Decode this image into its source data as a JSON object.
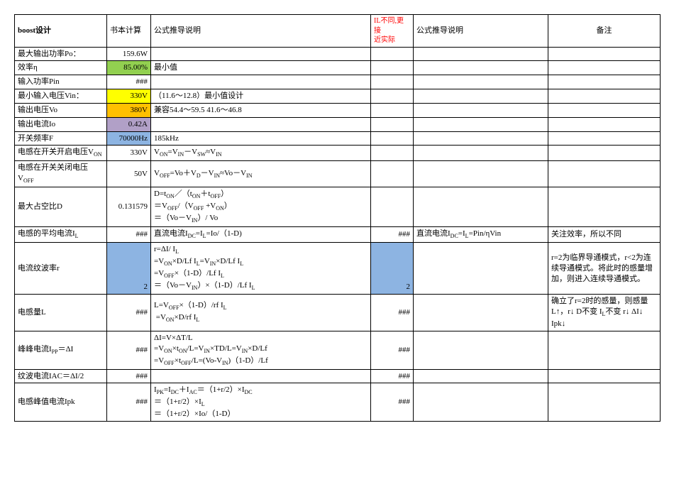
{
  "header": {
    "title": "boost设计",
    "colB": "书本计算",
    "colC": "公式推导说明",
    "colD_line1": "IL不同,更接",
    "colD_line2": "近实际",
    "colE": "公式推导说明",
    "colF": "备注"
  },
  "rows": {
    "po": {
      "label": "最大输出功率Po：",
      "val": "159.6W"
    },
    "eta": {
      "label": "效率η",
      "val": "85.00%",
      "note": "最小值",
      "bg": "bg-green"
    },
    "pin": {
      "label": "输入功率Pin",
      "val": "###"
    },
    "vin": {
      "label": "最小输入电压Vin：",
      "val": "330V",
      "note": "（11.6～12.8）最小值设计",
      "bg": "bg-yellow"
    },
    "vo": {
      "label": "输出电压Vo",
      "val": "380V",
      "note": "兼容54.4～59.5  41.6～46.8",
      "bg": "bg-orange"
    },
    "io": {
      "label": "输出电流Io",
      "val": "0.42A",
      "bg": "bg-purple"
    },
    "f": {
      "label": "开关频率F",
      "val": "70000Hz",
      "note": "185kHz",
      "bg": "bg-blue"
    },
    "von": {
      "label": "电感在开关开启电压V",
      "sub": "ON",
      "val": "330V",
      "note_html": "V<sub>ON</sub>=V<sub>IN</sub>－V<sub>SW</sub>≈V<sub>IN</sub>"
    },
    "voff": {
      "label": "电感在开关关闭电压V",
      "sub": "OFF",
      "val": "50V",
      "note_html": "V<sub>OFF</sub>=Vo＋V<sub>D</sub>－V<sub>IN</sub>≈Vo－V<sub>IN</sub>"
    },
    "d": {
      "label": "最大占空比D",
      "val": "0.131579",
      "note_html": "D=t<sub>ON</sub>／（t<sub>ON</sub>＋t<sub>OFF</sub>）<br>＝V<sub>OFF</sub>/（V<sub>OFF</sub> +V<sub>ON</sub>）<br>＝（Vo－V<sub>IN</sub>）/ Vo"
    },
    "il": {
      "label": "电感的平均电流I",
      "sub": "L",
      "val": "###",
      "noteC_html": "直流电流I<sub>DC</sub>=I<sub>L</sub>=Io/（1-D)",
      "valD": "###",
      "noteE_html": "直流电流I<sub>DC</sub>=I<sub>L</sub>=Pin/ηVin",
      "noteF": "关注效率，所以不同"
    },
    "r": {
      "label": "电流纹波率r",
      "val": "2",
      "bg": "bg-blue",
      "noteC_html": "r=ΔI/ I<sub>L</sub><br>=V<sub>ON</sub>×D/Lf I<sub>L</sub>=V<sub>IN</sub>×D/Lf I<sub>L</sub><br>=V<sub>OFF</sub>×（1-D）/Lf I<sub>L</sub><br>＝（Vo－V<sub>IN</sub>）×（1-D）/Lf I<sub>L</sub>",
      "valD": "2",
      "noteF": "r=2为临界导通模式，r<2为连续导通模式。将此时的感量增加，则进入连续导通模式。"
    },
    "L": {
      "label": "电感量L",
      "val": "###",
      "noteC_html": "L=V<sub>OFF</sub>×（1-D）/rf I<sub>L</sub><br>&nbsp;=V<sub>ON</sub>×D/rf I<sub>L</sub>",
      "valD": "###",
      "noteF": "确立了r=2时的感量，则感量L↑，r↓ D不变 I<sub>L</sub>不变 r↓ ΔI↓ Ipk↓"
    },
    "ipp": {
      "label": "峰峰电流I",
      "sub": "PP",
      "suffix": "＝ΔI",
      "val": "###",
      "noteC_html": "ΔI=V×ΔT/L<br>=V<sub>ON</sub>×t<sub>ON</sub>/L=V<sub>IN</sub>×TD/L=V<sub>IN</sub>×D/Lf<br>=V<sub>OFF</sub>×t<sub>OFF</sub>/L=(Vo-V<sub>IN</sub>)（1-D）/Lf",
      "valD": "###"
    },
    "iac": {
      "label": "纹波电流IAC＝ΔI/2",
      "val": "###",
      "valD": "###"
    },
    "ipk": {
      "label": "电感峰值电流Ipk",
      "val": "###",
      "noteC_html": "I<sub>PK</sub>=I<sub>DC</sub>＋I<sub>AC</sub>＝（1+r/2）×I<sub>DC</sub><br>＝（1+r/2）×I<sub>L</sub><br>＝（1+r/2）×Io/（1-D）",
      "valD": "###"
    }
  }
}
